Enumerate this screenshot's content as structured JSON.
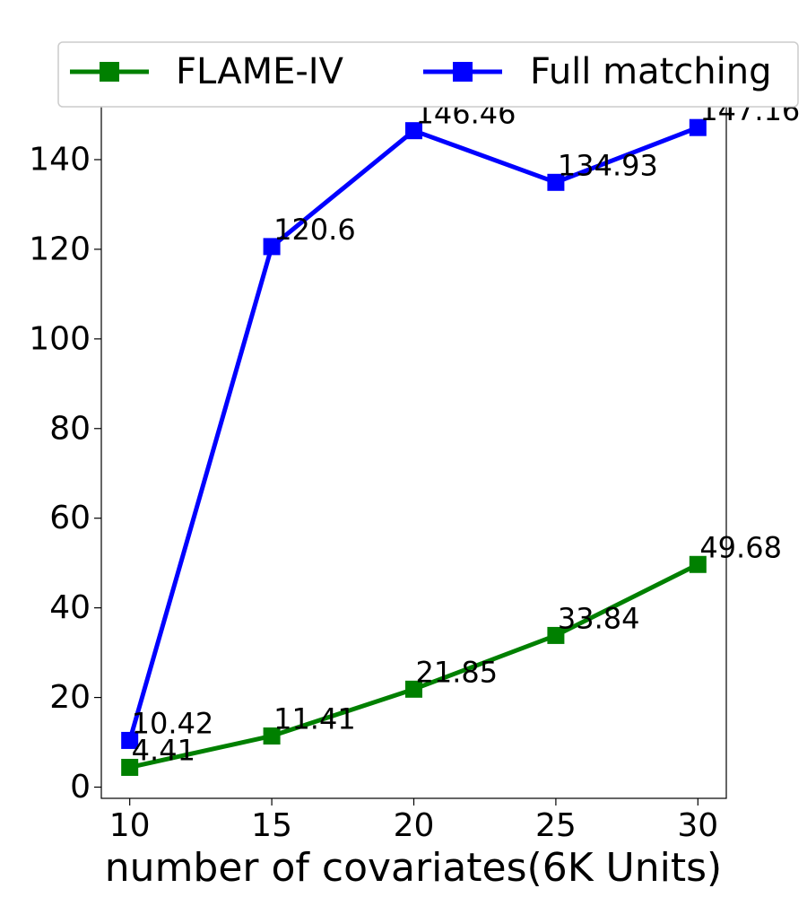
{
  "chart_data": {
    "type": "line",
    "title": "",
    "xlabel": "number of covariates(6K Units)",
    "ylabel": "",
    "x": [
      10,
      15,
      20,
      25,
      30
    ],
    "xlim": [
      9,
      31
    ],
    "ylim": [
      -2.5,
      152
    ],
    "xticks": [
      10,
      15,
      20,
      25,
      30
    ],
    "yticks": [
      0,
      20,
      40,
      60,
      80,
      100,
      120,
      140
    ],
    "grid": false,
    "legend_position": "top",
    "series": [
      {
        "name": "FLAME-IV",
        "color": "#008000",
        "marker": "square",
        "values": [
          4.41,
          11.41,
          21.85,
          33.84,
          49.68
        ],
        "labels": [
          "4.41",
          "11.41",
          "21.85",
          "33.84",
          "49.68"
        ]
      },
      {
        "name": "Full matching",
        "color": "#0000ff",
        "marker": "square",
        "values": [
          10.42,
          120.6,
          146.46,
          134.93,
          147.16
        ],
        "labels": [
          "10.42",
          "120.6",
          "146.46",
          "134.93",
          "147.16"
        ]
      }
    ]
  }
}
